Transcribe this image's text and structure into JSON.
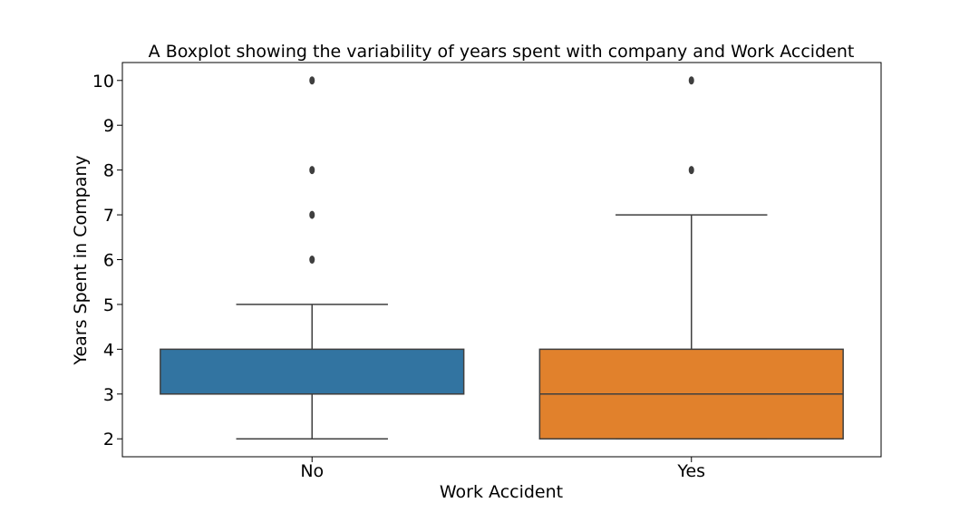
{
  "chart_data": {
    "type": "box",
    "title": "A Boxplot showing the variability of years spent with company and Work Accident",
    "xlabel": "Work Accident",
    "ylabel": "Years Spent in Company",
    "categories": [
      "No",
      "Yes"
    ],
    "ylim": [
      1.6,
      10.4
    ],
    "yticks": [
      2,
      3,
      4,
      5,
      6,
      7,
      8,
      9,
      10
    ],
    "grid": false,
    "colors": [
      "#3274a1",
      "#e1812c"
    ],
    "line_color": "#3f3f3f",
    "boxes": [
      {
        "category": "No",
        "whisker_low": 2,
        "q1": 3,
        "median": 3,
        "q3": 4,
        "whisker_high": 5,
        "outliers": [
          6,
          7,
          8,
          10
        ]
      },
      {
        "category": "Yes",
        "whisker_low": 2,
        "q1": 2,
        "median": 3,
        "q3": 4,
        "whisker_high": 7,
        "outliers": [
          8,
          10
        ]
      }
    ]
  }
}
